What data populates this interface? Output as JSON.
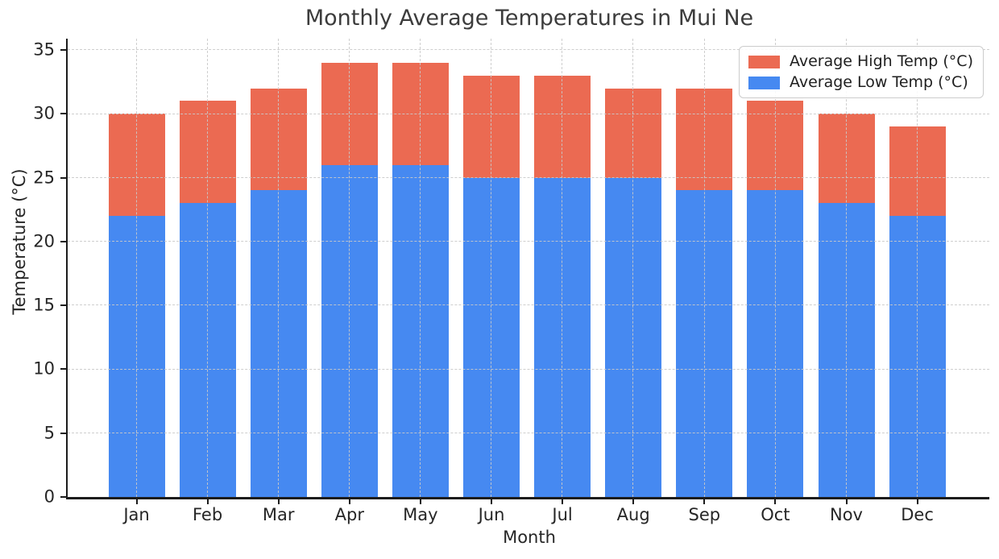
{
  "chart_data": {
    "type": "bar",
    "subtype": "overlaid-vertical-bars",
    "title": "Monthly Average Temperatures in Mui Ne",
    "xlabel": "Month",
    "ylabel": "Temperature (°C)",
    "categories": [
      "Jan",
      "Feb",
      "Mar",
      "Apr",
      "May",
      "Jun",
      "Jul",
      "Aug",
      "Sep",
      "Oct",
      "Nov",
      "Dec"
    ],
    "series": [
      {
        "name": "Average High Temp (°C)",
        "color": "#EB6A52",
        "values": [
          30,
          31,
          32,
          34,
          34,
          33,
          33,
          32,
          32,
          31,
          30,
          29
        ]
      },
      {
        "name": "Average Low Temp (°C)",
        "color": "#4689F1",
        "values": [
          22,
          23,
          24,
          26,
          26,
          25,
          25,
          25,
          24,
          24,
          23,
          22
        ]
      }
    ],
    "ylim": [
      0,
      35.9
    ],
    "yticks": [
      0,
      5,
      10,
      15,
      20,
      25,
      30,
      35
    ],
    "grid": "dashed, both axes, drawn above bars",
    "legend_position": "upper right",
    "colors": {
      "grid": "#c9c9c9",
      "spine": "#1c1c1c",
      "text": "#262626",
      "title_text": "#3c3c3c",
      "legend_border": "#cccccc",
      "background": "#ffffff"
    }
  }
}
